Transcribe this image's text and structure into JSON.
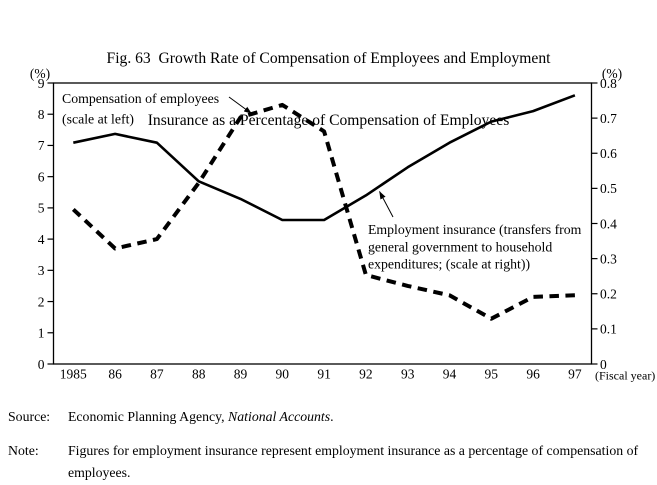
{
  "title": {
    "line1": "Fig. 63  Growth Rate of Compensation of Employees and Employment",
    "line2": "Insurance as a Percentage of Compensation of Employees"
  },
  "chart_data": {
    "type": "line",
    "x_categories": [
      "1985",
      "86",
      "87",
      "88",
      "89",
      "90",
      "91",
      "92",
      "93",
      "94",
      "95",
      "96",
      "97"
    ],
    "x_axis_note": "(Fiscal year)",
    "left_axis": {
      "unit": "(%)",
      "min": 0,
      "max": 9,
      "tick_step": 1,
      "ticks": [
        "0",
        "1",
        "2",
        "3",
        "4",
        "5",
        "6",
        "7",
        "8",
        "9"
      ]
    },
    "right_axis": {
      "unit": "(%)",
      "min": 0,
      "max": 0.8,
      "tick_step": 0.1,
      "ticks": [
        "0",
        "0.1",
        "0.2",
        "0.3",
        "0.4",
        "0.5",
        "0.6",
        "0.7",
        "0.8"
      ]
    },
    "grid": false,
    "series": [
      {
        "name": "Compensation of employees",
        "scale": "scale at left",
        "axis": "left",
        "style": "dashed",
        "color": "#000000",
        "values": [
          4.95,
          3.7,
          4.0,
          5.8,
          7.9,
          8.3,
          7.45,
          2.85,
          2.5,
          2.2,
          1.45,
          2.15,
          2.2
        ]
      },
      {
        "name": "Employment insurance",
        "scale": "scale at right",
        "axis": "right",
        "style": "solid",
        "color": "#000000",
        "values": [
          0.63,
          0.655,
          0.63,
          0.52,
          0.47,
          0.41,
          0.41,
          0.48,
          0.56,
          0.63,
          0.69,
          0.72,
          0.765
        ]
      }
    ],
    "annotations": [
      {
        "lines": [
          "Compensation of employees",
          "(scale at left)"
        ]
      },
      {
        "lines": [
          "Employment insurance (transfers from",
          "general government to household",
          "expenditures; (scale at right))"
        ]
      }
    ]
  },
  "source": {
    "label": "Source:",
    "text": "Economic Planning Agency, ",
    "italic": "National Accounts",
    "suffix": "."
  },
  "note": {
    "label": "Note:",
    "text": "Figures for employment insurance represent employment insurance as a percentage of compensation of employees."
  }
}
